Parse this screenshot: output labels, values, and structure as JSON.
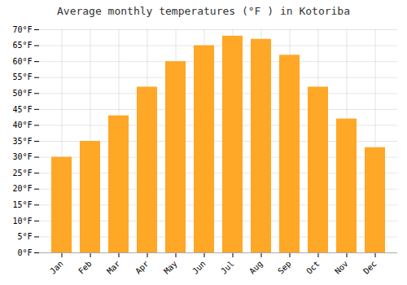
{
  "chart_data": {
    "type": "bar",
    "title": "Average monthly temperatures (°F ) in Kotoriba",
    "categories": [
      "Jan",
      "Feb",
      "Mar",
      "Apr",
      "May",
      "Jun",
      "Jul",
      "Aug",
      "Sep",
      "Oct",
      "Nov",
      "Dec"
    ],
    "values": [
      30,
      35,
      43,
      52,
      60,
      65,
      68,
      67,
      62,
      52,
      42,
      33
    ],
    "color": "#FFA726",
    "ylim": [
      0,
      70
    ],
    "yticks": [
      {
        "value": 0,
        "label": "0°F"
      },
      {
        "value": 5,
        "label": "5°F"
      },
      {
        "value": 10,
        "label": "10°F"
      },
      {
        "value": 15,
        "label": "15°F"
      },
      {
        "value": 20,
        "label": "20°F"
      },
      {
        "value": 25,
        "label": "25°F"
      },
      {
        "value": 30,
        "label": "30°F"
      },
      {
        "value": 35,
        "label": "35°F"
      },
      {
        "value": 40,
        "label": "40°F"
      },
      {
        "value": 45,
        "label": "45°F"
      },
      {
        "value": 50,
        "label": "50°F"
      },
      {
        "value": 55,
        "label": "55°F"
      },
      {
        "value": 60,
        "label": "60°F"
      },
      {
        "value": 65,
        "label": "65°F"
      },
      {
        "value": 70,
        "label": "70°F"
      }
    ],
    "grid": true
  }
}
